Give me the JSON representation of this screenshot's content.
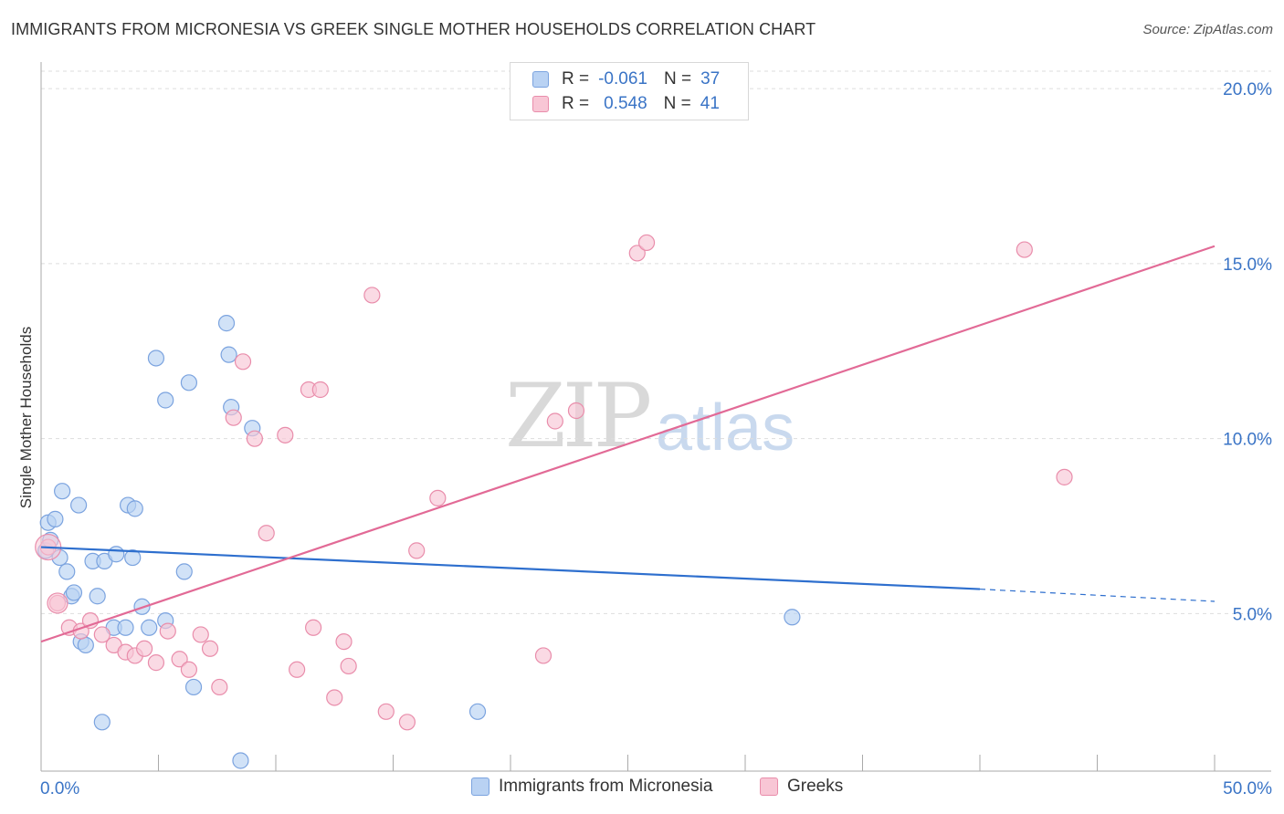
{
  "title": "IMMIGRANTS FROM MICRONESIA VS GREEK SINGLE MOTHER HOUSEHOLDS CORRELATION CHART",
  "source": "Source: ZipAtlas.com",
  "watermark": {
    "zip": "ZIP",
    "atlas": "atlas"
  },
  "colors": {
    "blue_fill": "#b9d2f3",
    "blue_stroke": "#7ba3df",
    "blue_line": "#2e6fce",
    "pink_fill": "#f8c6d5",
    "pink_stroke": "#e98dab",
    "pink_line": "#e26a96",
    "tick_label": "#3a74c6",
    "grid": "#dddddd"
  },
  "legend": {
    "rows": [
      {
        "r_label": "R =",
        "r_value": "-0.061",
        "n_label": "N =",
        "n_value": "37"
      },
      {
        "r_label": "R =",
        "r_value": "0.548",
        "n_label": "N =",
        "n_value": "41"
      }
    ]
  },
  "chart_data": {
    "type": "scatter",
    "title": "IMMIGRANTS FROM MICRONESIA VS GREEK SINGLE MOTHER HOUSEHOLDS CORRELATION CHART",
    "xlabel": "",
    "ylabel": "Single Mother Households",
    "xlim": [
      0,
      50
    ],
    "ylim": [
      0.5,
      20.5
    ],
    "x_tick_labels": [
      {
        "value": 0,
        "label": "0.0%"
      },
      {
        "value": 50,
        "label": "50.0%"
      }
    ],
    "y_ticks": [
      {
        "value": 5,
        "label": "5.0%"
      },
      {
        "value": 10,
        "label": "10.0%"
      },
      {
        "value": 15,
        "label": "15.0%"
      },
      {
        "value": 20,
        "label": "20.0%"
      }
    ],
    "legend_position": "top-center",
    "series": [
      {
        "name": "Immigrants from Micronesia",
        "color": "blue",
        "points": [
          [
            0.2,
            6.8
          ],
          [
            0.3,
            7.6
          ],
          [
            0.4,
            7.1
          ],
          [
            0.6,
            7.7
          ],
          [
            0.8,
            6.6
          ],
          [
            0.9,
            8.5
          ],
          [
            1.1,
            6.2
          ],
          [
            1.3,
            5.5
          ],
          [
            1.4,
            5.6
          ],
          [
            1.6,
            8.1
          ],
          [
            1.7,
            4.2
          ],
          [
            1.9,
            4.1
          ],
          [
            2.2,
            6.5
          ],
          [
            2.4,
            5.5
          ],
          [
            2.6,
            1.9
          ],
          [
            2.7,
            6.5
          ],
          [
            3.1,
            4.6
          ],
          [
            3.2,
            6.7
          ],
          [
            3.6,
            4.6
          ],
          [
            3.7,
            8.1
          ],
          [
            3.9,
            6.6
          ],
          [
            4.0,
            8.0
          ],
          [
            4.3,
            5.2
          ],
          [
            4.6,
            4.6
          ],
          [
            4.9,
            12.3
          ],
          [
            5.3,
            11.1
          ],
          [
            5.3,
            4.8
          ],
          [
            6.1,
            6.2
          ],
          [
            6.3,
            11.6
          ],
          [
            6.5,
            2.9
          ],
          [
            7.9,
            13.3
          ],
          [
            8.0,
            12.4
          ],
          [
            8.1,
            10.9
          ],
          [
            8.5,
            0.8
          ],
          [
            9.0,
            10.3
          ],
          [
            18.6,
            2.2
          ],
          [
            32.0,
            4.9
          ]
        ],
        "trend": {
          "x": [
            0,
            40
          ],
          "y": [
            6.9,
            5.7
          ],
          "dashed_extension": {
            "x": [
              40,
              50
            ],
            "y": [
              5.7,
              5.35
            ]
          }
        }
      },
      {
        "name": "Greeks",
        "color": "pink",
        "points": [
          [
            0.3,
            6.9
          ],
          [
            0.7,
            5.3
          ],
          [
            1.2,
            4.6
          ],
          [
            1.7,
            4.5
          ],
          [
            2.1,
            4.8
          ],
          [
            2.6,
            4.4
          ],
          [
            3.1,
            4.1
          ],
          [
            3.6,
            3.9
          ],
          [
            4.0,
            3.8
          ],
          [
            4.4,
            4.0
          ],
          [
            4.9,
            3.6
          ],
          [
            5.4,
            4.5
          ],
          [
            5.9,
            3.7
          ],
          [
            6.3,
            3.4
          ],
          [
            6.8,
            4.4
          ],
          [
            7.2,
            4.0
          ],
          [
            7.6,
            2.9
          ],
          [
            8.2,
            10.6
          ],
          [
            8.6,
            12.2
          ],
          [
            9.1,
            10.0
          ],
          [
            9.6,
            7.3
          ],
          [
            10.4,
            10.1
          ],
          [
            10.9,
            3.4
          ],
          [
            11.4,
            11.4
          ],
          [
            11.6,
            4.6
          ],
          [
            11.9,
            11.4
          ],
          [
            12.5,
            2.6
          ],
          [
            12.9,
            4.2
          ],
          [
            13.1,
            3.5
          ],
          [
            14.1,
            14.1
          ],
          [
            14.7,
            2.2
          ],
          [
            15.6,
            1.9
          ],
          [
            16.0,
            6.8
          ],
          [
            16.9,
            8.3
          ],
          [
            21.4,
            3.8
          ],
          [
            21.9,
            10.5
          ],
          [
            22.8,
            10.8
          ],
          [
            25.4,
            15.3
          ],
          [
            25.8,
            15.6
          ],
          [
            41.9,
            15.4
          ],
          [
            43.6,
            8.9
          ]
        ],
        "trend": {
          "x": [
            0,
            50
          ],
          "y": [
            4.2,
            15.5
          ]
        }
      }
    ]
  }
}
